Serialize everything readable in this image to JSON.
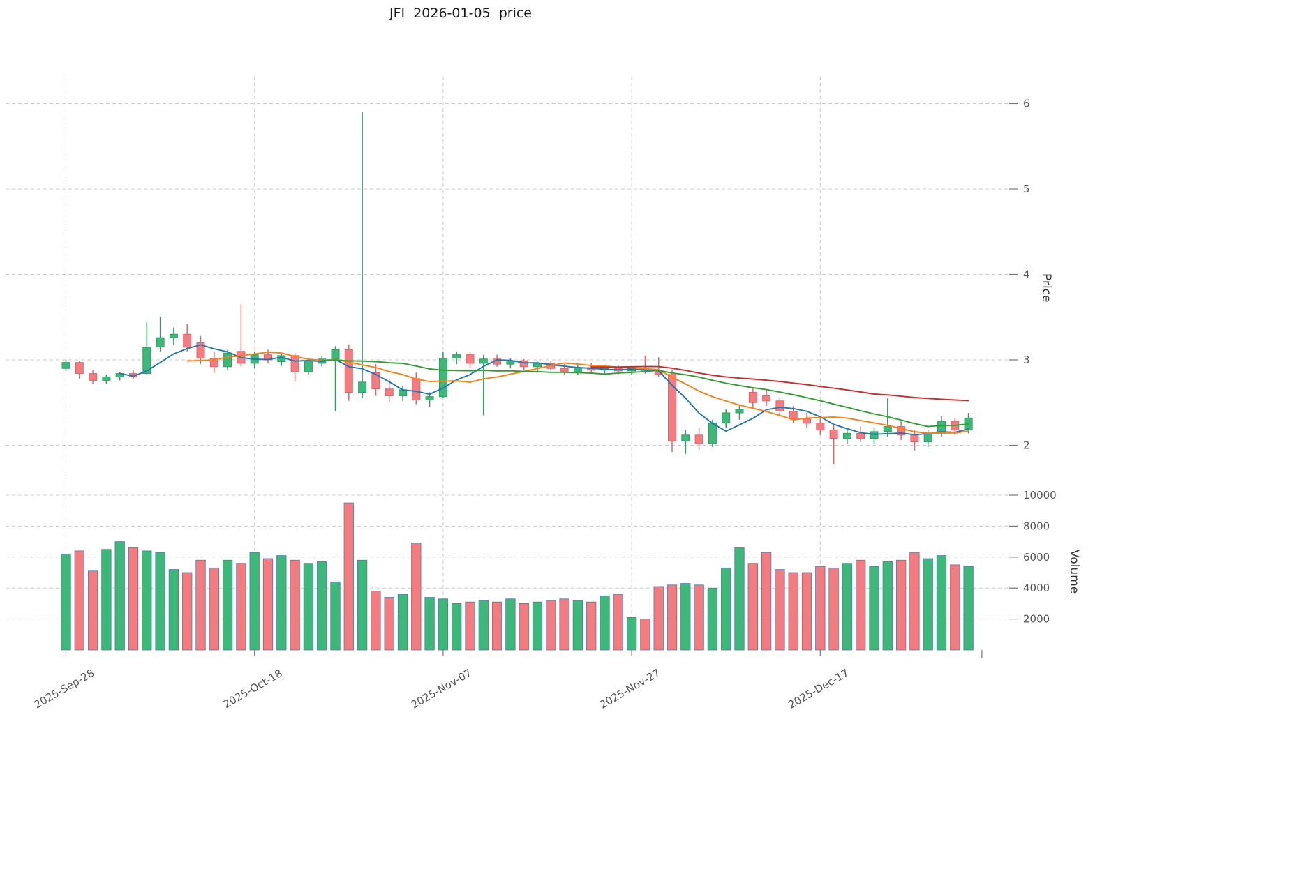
{
  "header": {
    "title": "JFI  2026-01-05  price"
  },
  "chart_data": {
    "type": "candlestick",
    "title": "JFI  2026-01-05  price",
    "ylabel_price": "Price",
    "ylabel_volume": "Volume",
    "xlabel": "",
    "grid": true,
    "price_ticks": [
      2,
      3,
      4,
      5,
      6
    ],
    "volume_ticks": [
      2000,
      4000,
      6000,
      8000,
      10000
    ],
    "price_range": [
      1.55,
      6.3
    ],
    "volume_range": [
      0,
      10450
    ],
    "xticks": [
      {
        "index": 0,
        "label": "2025-Sep-28"
      },
      {
        "index": 14,
        "label": "2025-Oct-18"
      },
      {
        "index": 28,
        "label": "2025-Nov-07"
      },
      {
        "index": 42,
        "label": "2025-Nov-27"
      },
      {
        "index": 56,
        "label": "2025-Dec-17"
      }
    ],
    "moving_averages": [
      {
        "name": "mav-short",
        "window": 5,
        "color": "#1f77b4"
      },
      {
        "name": "mav-mid",
        "window": 10,
        "color": "#ff7f0e"
      },
      {
        "name": "mav-long",
        "window": 20,
        "color": "#2ca02c"
      },
      {
        "name": "mav-longest",
        "window": 40,
        "color": "#d62728"
      }
    ],
    "colors": {
      "up": "#3cb878",
      "up_edge": "#2e9e63",
      "down": "#f47c80",
      "down_edge": "#e2636b",
      "volume_edge": "#4f7bb0",
      "grid": "#cccccc",
      "axis_text": "#555555",
      "tick_mark": "#777777"
    },
    "candles": [
      [
        2.9,
        3.0,
        2.87,
        2.97,
        6200
      ],
      [
        2.97,
        2.99,
        2.78,
        2.84,
        6400
      ],
      [
        2.84,
        2.88,
        2.72,
        2.76,
        5100
      ],
      [
        2.76,
        2.83,
        2.72,
        2.8,
        6500
      ],
      [
        2.8,
        2.86,
        2.76,
        2.84,
        7000
      ],
      [
        2.84,
        2.88,
        2.78,
        2.8,
        6600
      ],
      [
        2.84,
        3.45,
        2.82,
        3.15,
        6400
      ],
      [
        3.15,
        3.5,
        3.1,
        3.26,
        6300
      ],
      [
        3.26,
        3.38,
        3.18,
        3.3,
        5200
      ],
      [
        3.3,
        3.42,
        3.1,
        3.15,
        5000
      ],
      [
        3.2,
        3.28,
        2.95,
        3.02,
        5800
      ],
      [
        3.02,
        3.1,
        2.85,
        2.92,
        5300
      ],
      [
        2.92,
        3.12,
        2.88,
        3.08,
        5800
      ],
      [
        3.1,
        3.65,
        2.92,
        2.96,
        5600
      ],
      [
        2.96,
        3.1,
        2.9,
        3.06,
        6300
      ],
      [
        3.06,
        3.12,
        2.96,
        3.0,
        5900
      ],
      [
        2.98,
        3.08,
        2.93,
        3.05,
        6100
      ],
      [
        3.05,
        3.08,
        2.75,
        2.86,
        5800
      ],
      [
        2.86,
        3.02,
        2.83,
        2.99,
        5600
      ],
      [
        2.96,
        3.04,
        2.92,
        3.01,
        5700
      ],
      [
        3.01,
        3.16,
        2.4,
        3.12,
        4400
      ],
      [
        3.12,
        3.18,
        2.52,
        2.62,
        9500
      ],
      [
        2.62,
        5.9,
        2.55,
        2.74,
        5800
      ],
      [
        2.85,
        2.95,
        2.58,
        2.66,
        3800
      ],
      [
        2.66,
        2.78,
        2.5,
        2.58,
        3400
      ],
      [
        2.58,
        2.7,
        2.52,
        2.65,
        3600
      ],
      [
        2.78,
        2.85,
        2.48,
        2.53,
        6900
      ],
      [
        2.53,
        2.62,
        2.45,
        2.57,
        3400
      ],
      [
        2.57,
        3.1,
        2.55,
        3.02,
        3300
      ],
      [
        3.02,
        3.1,
        2.95,
        3.06,
        3000
      ],
      [
        3.06,
        3.09,
        2.9,
        2.96,
        3100
      ],
      [
        2.96,
        3.06,
        2.35,
        3.01,
        3200
      ],
      [
        3.01,
        3.06,
        2.92,
        2.95,
        3100
      ],
      [
        2.95,
        3.02,
        2.9,
        2.99,
        3300
      ],
      [
        2.99,
        3.01,
        2.88,
        2.92,
        3000
      ],
      [
        2.92,
        2.98,
        2.85,
        2.96,
        3100
      ],
      [
        2.96,
        2.99,
        2.87,
        2.9,
        3200
      ],
      [
        2.9,
        2.95,
        2.82,
        2.86,
        3300
      ],
      [
        2.86,
        2.94,
        2.82,
        2.91,
        3200
      ],
      [
        2.91,
        2.96,
        2.84,
        2.88,
        3100
      ],
      [
        2.88,
        2.93,
        2.83,
        2.9,
        3500
      ],
      [
        2.9,
        2.94,
        2.83,
        2.87,
        3600
      ],
      [
        2.87,
        2.92,
        2.82,
        2.9,
        2100
      ],
      [
        2.9,
        3.05,
        2.84,
        2.86,
        2000
      ],
      [
        2.86,
        3.03,
        2.8,
        2.83,
        4100
      ],
      [
        2.83,
        2.88,
        1.92,
        2.05,
        4200
      ],
      [
        2.05,
        2.18,
        1.9,
        2.12,
        4300
      ],
      [
        2.12,
        2.2,
        1.95,
        2.02,
        4200
      ],
      [
        2.02,
        2.3,
        1.98,
        2.26,
        4000
      ],
      [
        2.26,
        2.42,
        2.2,
        2.38,
        5300
      ],
      [
        2.38,
        2.48,
        2.3,
        2.42,
        6600
      ],
      [
        2.62,
        2.68,
        2.44,
        2.5,
        5600
      ],
      [
        2.58,
        2.66,
        2.46,
        2.52,
        6300
      ],
      [
        2.52,
        2.56,
        2.35,
        2.4,
        5200
      ],
      [
        2.4,
        2.46,
        2.26,
        2.31,
        5000
      ],
      [
        2.31,
        2.38,
        2.2,
        2.26,
        5000
      ],
      [
        2.26,
        2.34,
        2.12,
        2.18,
        5400
      ],
      [
        2.18,
        2.24,
        1.78,
        2.08,
        5300
      ],
      [
        2.08,
        2.18,
        2.02,
        2.14,
        5600
      ],
      [
        2.14,
        2.22,
        2.04,
        2.08,
        5800
      ],
      [
        2.08,
        2.2,
        2.02,
        2.16,
        5400
      ],
      [
        2.16,
        2.55,
        2.1,
        2.22,
        5700
      ],
      [
        2.22,
        2.28,
        2.06,
        2.12,
        5800
      ],
      [
        2.12,
        2.18,
        1.94,
        2.04,
        6300
      ],
      [
        2.04,
        2.18,
        1.98,
        2.14,
        5900
      ],
      [
        2.14,
        2.34,
        2.1,
        2.28,
        6100
      ],
      [
        2.28,
        2.32,
        2.12,
        2.18,
        5500
      ],
      [
        2.18,
        2.38,
        2.14,
        2.32,
        5400
      ]
    ]
  }
}
